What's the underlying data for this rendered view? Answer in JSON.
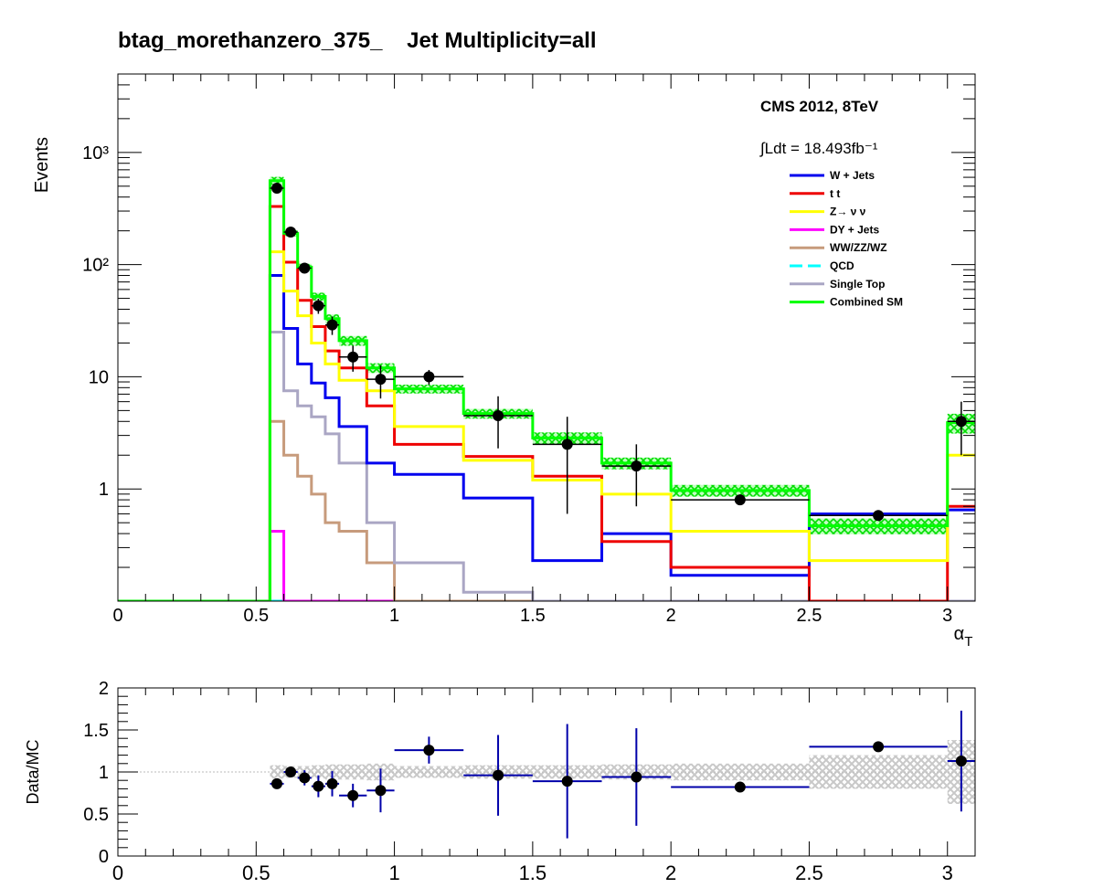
{
  "title": "btag_morethanzero_375_    Jet Multiplicity=all",
  "cms_label": "CMS 2012, 8TeV",
  "lumi_label": "∫Ldt = 18.493fb⁻¹",
  "colors": {
    "wjets": "#0000ee",
    "ttbar": "#ee0000",
    "zinv": "#ffff00",
    "dy": "#ff00ff",
    "diboson": "#c79b7c",
    "qcd": "#00ffff",
    "singletop": "#aaa6c4",
    "combined": "#00ff00",
    "data": "#000000",
    "ratio_err": "#0000aa",
    "band": "#c8c8c8"
  },
  "chart_data": [
    {
      "type": "line",
      "title": "btag_morethanzero_375_    Jet Multiplicity=all",
      "xlabel": "α_T",
      "ylabel": "Events",
      "xlim": [
        0,
        3.1
      ],
      "ylim": [
        0.1,
        5000
      ],
      "yscale": "log",
      "x_ticks": [
        "0",
        "0.5",
        "1",
        "1.5",
        "2",
        "2.5",
        "3"
      ],
      "y_ticks": [
        "1",
        "10",
        "10²",
        "10³"
      ],
      "legend_position": "top-right",
      "bin_edges": [
        0,
        0.55,
        0.6,
        0.65,
        0.7,
        0.75,
        0.8,
        0.9,
        1.0,
        1.25,
        1.5,
        1.75,
        2.0,
        2.5,
        3.0,
        3.1
      ],
      "series": [
        {
          "name": "W + Jets",
          "key": "wjets",
          "values": [
            0,
            80,
            27,
            13,
            8.8,
            6.5,
            3.6,
            1.7,
            1.35,
            0.83,
            0.23,
            0.4,
            0.17,
            0.6,
            0.65
          ]
        },
        {
          "name": "t  t",
          "key": "ttbar",
          "values": [
            0,
            330,
            105,
            48,
            28,
            17,
            12,
            5.5,
            2.5,
            1.95,
            1.3,
            0.34,
            0.2,
            0.1,
            0.7
          ]
        },
        {
          "name": "Z→ ν  ν",
          "key": "zinv",
          "values": [
            0,
            130,
            58,
            35,
            20,
            13,
            9.3,
            7.5,
            3.6,
            1.8,
            1.2,
            0.9,
            0.42,
            0.23,
            2.0
          ]
        },
        {
          "name": "DY + Jets",
          "key": "dy",
          "values": [
            0,
            0.42,
            0,
            0,
            0,
            0,
            0,
            0,
            0,
            0,
            0,
            0,
            0,
            0,
            0
          ]
        },
        {
          "name": "WW/ZZ/WZ",
          "key": "diboson",
          "values": [
            0,
            4.0,
            2.0,
            1.3,
            0.9,
            0.5,
            0.42,
            0.22,
            0,
            0,
            0,
            0,
            0,
            0,
            0
          ]
        },
        {
          "name": "QCD",
          "key": "qcd",
          "values": [
            0,
            0,
            0,
            0,
            0,
            0,
            0,
            0,
            0,
            0,
            0,
            0,
            0,
            0,
            0
          ]
        },
        {
          "name": "Single Top",
          "key": "singletop",
          "values": [
            0,
            25,
            7.5,
            5.5,
            4.4,
            3.1,
            1.7,
            0.5,
            0.22,
            0.12,
            0,
            0,
            0,
            0,
            0
          ]
        },
        {
          "name": "Combined SM",
          "key": "combined",
          "values": [
            0,
            560,
            190,
            95,
            52,
            33,
            21,
            12,
            7.8,
            4.7,
            2.85,
            1.7,
            0.97,
            0.47,
            3.9
          ]
        }
      ],
      "data_points": [
        {
          "x": 0.575,
          "y": 480,
          "xerr": 0.025,
          "yerr": 22
        },
        {
          "x": 0.625,
          "y": 195,
          "xerr": 0.025,
          "yerr": 14
        },
        {
          "x": 0.675,
          "y": 93,
          "xerr": 0.025,
          "yerr": 9.6
        },
        {
          "x": 0.725,
          "y": 43,
          "xerr": 0.025,
          "yerr": 6.6
        },
        {
          "x": 0.775,
          "y": 29,
          "xerr": 0.025,
          "yerr": 5.4
        },
        {
          "x": 0.85,
          "y": 15,
          "xerr": 0.05,
          "yerr": 3.9
        },
        {
          "x": 0.95,
          "y": 9.5,
          "xerr": 0.05,
          "yerr": 3.1
        },
        {
          "x": 1.125,
          "y": 10,
          "xerr": 0.125,
          "yerr": 1.5
        },
        {
          "x": 1.375,
          "y": 4.5,
          "xerr": 0.125,
          "yerr": 2.2
        },
        {
          "x": 1.625,
          "y": 2.5,
          "xerr": 0.125,
          "yerr": 1.9
        },
        {
          "x": 1.875,
          "y": 1.6,
          "xerr": 0.125,
          "yerr": 0.9
        },
        {
          "x": 2.25,
          "y": 0.8,
          "xerr": 0.25,
          "yerr": 0
        },
        {
          "x": 2.75,
          "y": 0.58,
          "xerr": 0.25,
          "yerr": 0
        },
        {
          "x": 3.05,
          "y": 4.0,
          "xerr": 0.05,
          "yerr": 2.0
        }
      ],
      "sm_uncertainty": [
        0,
        0.08,
        0.06,
        0.07,
        0.08,
        0.09,
        0.1,
        0.1,
        0.09,
        0.1,
        0.12,
        0.12,
        0.12,
        0.16,
        0.2
      ]
    },
    {
      "type": "scatter",
      "xlabel": "",
      "ylabel": "Data/MC",
      "xlim": [
        0,
        3.1
      ],
      "ylim": [
        0,
        2
      ],
      "x_ticks": [
        "0",
        "0.5",
        "1",
        "1.5",
        "2",
        "2.5",
        "3"
      ],
      "y_ticks": [
        "0",
        "0.5",
        "1",
        "1.5",
        "2"
      ],
      "reference_line": 1,
      "points": [
        {
          "x": 0.575,
          "y": 0.86,
          "xerr": 0.025,
          "yerr": 0.04
        },
        {
          "x": 0.625,
          "y": 1.0,
          "xerr": 0.025,
          "yerr": 0.06
        },
        {
          "x": 0.675,
          "y": 0.93,
          "xerr": 0.025,
          "yerr": 0.09
        },
        {
          "x": 0.725,
          "y": 0.83,
          "xerr": 0.025,
          "yerr": 0.13
        },
        {
          "x": 0.775,
          "y": 0.86,
          "xerr": 0.025,
          "yerr": 0.15
        },
        {
          "x": 0.85,
          "y": 0.72,
          "xerr": 0.05,
          "yerr": 0.14
        },
        {
          "x": 0.95,
          "y": 0.78,
          "xerr": 0.05,
          "yerr": 0.26
        },
        {
          "x": 1.125,
          "y": 1.26,
          "xerr": 0.125,
          "yerr": 0.16
        },
        {
          "x": 1.375,
          "y": 0.96,
          "xerr": 0.125,
          "yerr": 0.48
        },
        {
          "x": 1.625,
          "y": 0.89,
          "xerr": 0.125,
          "yerr": 0.68
        },
        {
          "x": 1.875,
          "y": 0.94,
          "xerr": 0.125,
          "yerr": 0.58
        },
        {
          "x": 2.25,
          "y": 0.82,
          "xerr": 0.25,
          "yerr": 0
        },
        {
          "x": 2.75,
          "y": 1.3,
          "xerr": 0.25,
          "yerr": 0
        },
        {
          "x": 3.05,
          "y": 1.13,
          "xerr": 0.05,
          "yerr": 0.6
        }
      ],
      "band": [
        0,
        0.08,
        0.07,
        0.07,
        0.08,
        0.09,
        0.09,
        0.1,
        0.07,
        0.08,
        0.08,
        0.09,
        0.1,
        0.2,
        0.38
      ]
    }
  ]
}
